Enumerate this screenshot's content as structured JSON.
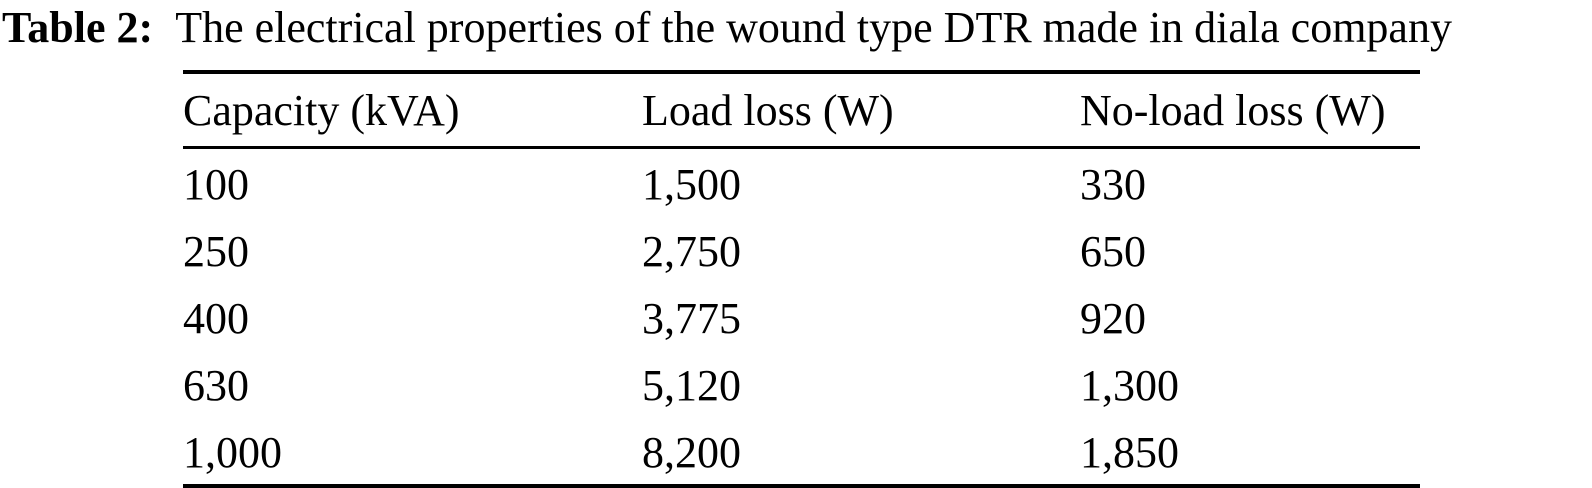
{
  "title": {
    "label": "Table 2:",
    "caption": "The electrical properties of the wound type DTR made in diala company"
  },
  "table": {
    "columns": [
      "Capacity (kVA)",
      "Load loss (W)",
      "No-load loss (W)"
    ],
    "rows": [
      [
        "100",
        "1,500",
        "330"
      ],
      [
        "250",
        "2,750",
        "650"
      ],
      [
        "400",
        "3,775",
        "920"
      ],
      [
        "630",
        "5,120",
        "1,300"
      ],
      [
        "1,000",
        "8,200",
        "1,850"
      ]
    ]
  },
  "colors": {
    "text": "#000000",
    "background": "#ffffff",
    "rule": "#000000"
  }
}
